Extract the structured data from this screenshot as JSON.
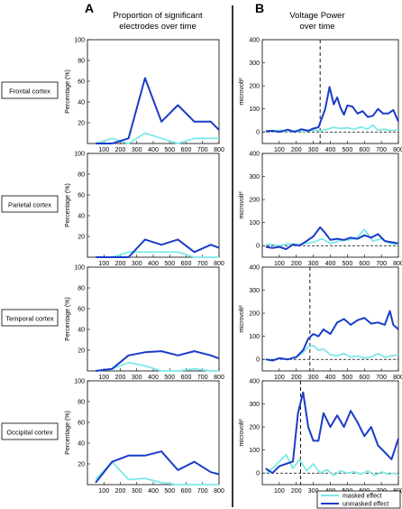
{
  "panel_letters": [
    "A",
    "B"
  ],
  "column_titles": {
    "left": [
      "Proportion of significant",
      "electrodes over time"
    ],
    "right": [
      "Voltage Power",
      "over time"
    ]
  },
  "regions": [
    "Frontal cortex",
    "Parietal cortex",
    "Temporal cortex",
    "Occipital cortex"
  ],
  "legend": {
    "masked": "masked effect",
    "unmasked": "unmasked effect"
  },
  "colors": {
    "masked": "#7fe8e8",
    "unmasked": "#1a3cc8",
    "axis": "#000000",
    "divider": "#000000"
  },
  "chart_data": [
    {
      "type": "line",
      "panel": "A",
      "region": "Frontal cortex",
      "ylabel": "Percentage (%)",
      "xlim": [
        0,
        800
      ],
      "ylim": [
        0,
        100
      ],
      "xticks": [
        100,
        200,
        300,
        400,
        500,
        600,
        700,
        800
      ],
      "yticks": [
        20,
        40,
        60,
        80,
        100
      ],
      "series": [
        {
          "key": "masked",
          "x": [
            50,
            150,
            250,
            350,
            450,
            550,
            650,
            750,
            800
          ],
          "y": [
            0,
            5,
            0,
            10,
            5,
            0,
            5,
            5,
            5
          ]
        },
        {
          "key": "unmasked",
          "x": [
            50,
            150,
            250,
            350,
            450,
            550,
            650,
            750,
            800
          ],
          "y": [
            0,
            0,
            5,
            63,
            21,
            37,
            21,
            21,
            13
          ]
        }
      ]
    },
    {
      "type": "line",
      "panel": "A",
      "region": "Parietal cortex",
      "ylabel": "Percentage (%)",
      "xlim": [
        0,
        800
      ],
      "ylim": [
        0,
        100
      ],
      "xticks": [
        100,
        200,
        300,
        400,
        500,
        600,
        700,
        800
      ],
      "yticks": [
        20,
        40,
        60,
        80,
        100
      ],
      "series": [
        {
          "key": "masked",
          "x": [
            50,
            150,
            250,
            350,
            450,
            550,
            650,
            750,
            800
          ],
          "y": [
            0,
            0,
            5,
            5,
            5,
            5,
            0,
            0,
            0
          ]
        },
        {
          "key": "unmasked",
          "x": [
            50,
            150,
            250,
            350,
            450,
            550,
            650,
            750,
            800
          ],
          "y": [
            0,
            0,
            0,
            17,
            12,
            17,
            5,
            12,
            9
          ]
        }
      ]
    },
    {
      "type": "line",
      "panel": "A",
      "region": "Temporal cortex",
      "ylabel": "Percentage (%)",
      "xlim": [
        0,
        800
      ],
      "ylim": [
        0,
        100
      ],
      "xticks": [
        100,
        200,
        300,
        400,
        500,
        600,
        700,
        800
      ],
      "yticks": [
        20,
        40,
        60,
        80,
        100
      ],
      "series": [
        {
          "key": "masked",
          "x": [
            50,
            150,
            250,
            350,
            450,
            550,
            650,
            750,
            800
          ],
          "y": [
            0,
            2,
            8,
            5,
            0,
            0,
            2,
            0,
            0
          ]
        },
        {
          "key": "unmasked",
          "x": [
            50,
            150,
            250,
            350,
            450,
            550,
            650,
            750,
            800
          ],
          "y": [
            0,
            2,
            15,
            18,
            19,
            15,
            19,
            15,
            12
          ]
        }
      ]
    },
    {
      "type": "line",
      "panel": "A",
      "region": "Occipital cortex",
      "ylabel": "Percentage (%)",
      "xlim": [
        0,
        800
      ],
      "ylim": [
        0,
        100
      ],
      "xticks": [
        100,
        200,
        300,
        400,
        500,
        600,
        700,
        800
      ],
      "yticks": [
        20,
        40,
        60,
        80,
        100
      ],
      "series": [
        {
          "key": "masked",
          "x": [
            50,
            150,
            250,
            350,
            450,
            550,
            650,
            750,
            800
          ],
          "y": [
            5,
            22,
            5,
            6,
            2,
            0,
            0,
            0,
            0
          ]
        },
        {
          "key": "unmasked",
          "x": [
            50,
            150,
            250,
            350,
            450,
            550,
            650,
            750,
            800
          ],
          "y": [
            2,
            22,
            28,
            28,
            32,
            14,
            22,
            12,
            10
          ]
        }
      ]
    },
    {
      "type": "line",
      "panel": "B",
      "region": "Frontal cortex",
      "ylabel": "microvolt²",
      "xlim": [
        0,
        800
      ],
      "ylim": [
        -50,
        400
      ],
      "xticks": [
        100,
        200,
        300,
        400,
        500,
        600,
        700,
        800
      ],
      "yticks": [
        0,
        100,
        200,
        300,
        400
      ],
      "zero_line": true,
      "vline": 340,
      "series": [
        {
          "key": "masked",
          "x": [
            20,
            60,
            100,
            150,
            200,
            250,
            300,
            340,
            380,
            420,
            460,
            500,
            540,
            580,
            620,
            650,
            680,
            720,
            760,
            800
          ],
          "y": [
            5,
            3,
            8,
            3,
            6,
            3,
            8,
            5,
            12,
            20,
            15,
            18,
            12,
            22,
            12,
            30,
            8,
            12,
            5,
            10
          ]
        },
        {
          "key": "unmasked",
          "x": [
            20,
            60,
            100,
            150,
            190,
            230,
            270,
            300,
            330,
            350,
            370,
            395,
            420,
            440,
            460,
            480,
            500,
            530,
            560,
            590,
            620,
            650,
            680,
            710,
            740,
            770,
            800
          ],
          "y": [
            3,
            5,
            0,
            10,
            0,
            12,
            5,
            15,
            20,
            60,
            100,
            195,
            120,
            150,
            105,
            75,
            115,
            110,
            80,
            90,
            65,
            70,
            100,
            80,
            80,
            95,
            45
          ]
        }
      ]
    },
    {
      "type": "line",
      "panel": "B",
      "region": "Parietal cortex",
      "ylabel": "microvolt²",
      "xlim": [
        0,
        800
      ],
      "ylim": [
        -50,
        400
      ],
      "xticks": [
        100,
        200,
        300,
        400,
        500,
        600,
        700,
        800
      ],
      "yticks": [
        0,
        100,
        200,
        300,
        400
      ],
      "zero_line": true,
      "series": [
        {
          "key": "masked",
          "x": [
            20,
            60,
            100,
            150,
            200,
            250,
            300,
            350,
            400,
            450,
            500,
            550,
            600,
            650,
            700,
            750,
            800
          ],
          "y": [
            5,
            5,
            0,
            8,
            5,
            10,
            15,
            30,
            10,
            20,
            25,
            30,
            70,
            20,
            30,
            10,
            5
          ]
        },
        {
          "key": "unmasked",
          "x": [
            20,
            60,
            100,
            140,
            180,
            220,
            260,
            300,
            340,
            370,
            400,
            440,
            480,
            520,
            560,
            600,
            640,
            680,
            720,
            760,
            800
          ],
          "y": [
            -5,
            -10,
            -5,
            -15,
            5,
            0,
            20,
            40,
            80,
            55,
            25,
            30,
            25,
            35,
            30,
            45,
            35,
            50,
            20,
            15,
            10
          ]
        }
      ]
    },
    {
      "type": "line",
      "panel": "B",
      "region": "Temporal cortex",
      "ylabel": "microvolt²",
      "xlim": [
        0,
        800
      ],
      "ylim": [
        -50,
        400
      ],
      "xticks": [
        100,
        200,
        300,
        400,
        500,
        600,
        700,
        800
      ],
      "yticks": [
        0,
        100,
        200,
        300,
        400
      ],
      "zero_line": true,
      "vline": 280,
      "series": [
        {
          "key": "masked",
          "x": [
            20,
            60,
            100,
            150,
            200,
            240,
            270,
            300,
            330,
            360,
            400,
            440,
            480,
            520,
            560,
            600,
            640,
            680,
            720,
            760,
            800
          ],
          "y": [
            0,
            -5,
            5,
            0,
            10,
            30,
            55,
            60,
            40,
            45,
            20,
            15,
            25,
            10,
            15,
            5,
            10,
            25,
            10,
            15,
            20
          ]
        },
        {
          "key": "unmasked",
          "x": [
            20,
            60,
            100,
            150,
            200,
            240,
            270,
            300,
            330,
            360,
            400,
            440,
            480,
            520,
            560,
            600,
            640,
            680,
            720,
            750,
            770,
            800
          ],
          "y": [
            0,
            -5,
            5,
            0,
            10,
            40,
            90,
            110,
            100,
            130,
            110,
            160,
            175,
            150,
            170,
            180,
            155,
            160,
            150,
            210,
            150,
            130
          ]
        }
      ]
    },
    {
      "type": "line",
      "panel": "B",
      "region": "Occipital cortex",
      "ylabel": "microvolt²",
      "xlim": [
        0,
        800
      ],
      "ylim": [
        -50,
        400
      ],
      "xticks": [
        100,
        200,
        300,
        400,
        500,
        600,
        700,
        800
      ],
      "yticks": [
        0,
        100,
        200,
        300,
        400
      ],
      "zero_line": true,
      "vline": 225,
      "series": [
        {
          "key": "masked",
          "x": [
            20,
            60,
            100,
            140,
            180,
            220,
            260,
            300,
            340,
            380,
            420,
            460,
            500,
            540,
            580,
            620,
            660,
            700,
            740,
            780,
            800
          ],
          "y": [
            0,
            20,
            50,
            80,
            20,
            60,
            10,
            40,
            0,
            15,
            -10,
            10,
            0,
            5,
            -5,
            10,
            -10,
            5,
            -5,
            0,
            -10
          ]
        },
        {
          "key": "unmasked",
          "x": [
            20,
            60,
            100,
            140,
            180,
            210,
            240,
            270,
            300,
            330,
            360,
            400,
            440,
            480,
            520,
            560,
            600,
            640,
            680,
            720,
            760,
            800
          ],
          "y": [
            20,
            0,
            30,
            40,
            50,
            260,
            350,
            200,
            140,
            140,
            260,
            200,
            250,
            200,
            270,
            220,
            160,
            200,
            120,
            90,
            60,
            150
          ]
        }
      ]
    }
  ]
}
